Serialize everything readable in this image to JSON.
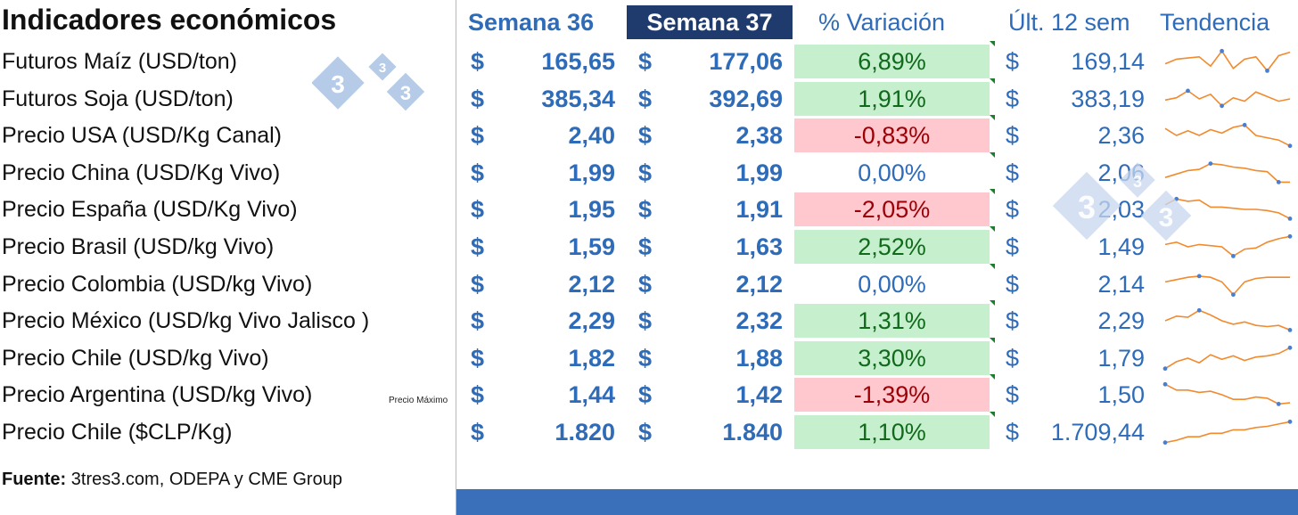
{
  "title": "Indicadores económicos",
  "headers": {
    "week36": "Semana 36",
    "week37": "Semana 37",
    "variation": "% Variación",
    "last12": "Últ. 12 sem",
    "trend": "Tendencia"
  },
  "currency_symbol": "$",
  "rows": [
    {
      "label": "Futuros Maíz (USD/ton)",
      "w36": "165,65",
      "w37": "177,06",
      "var": "6,89%",
      "sign": "pos",
      "last12": "169,14",
      "trend": [
        0.4,
        0.6,
        0.65,
        0.7,
        0.3,
        0.95,
        0.2,
        0.6,
        0.7,
        0.1,
        0.75,
        0.9
      ]
    },
    {
      "label": "Futuros Soja (USD/ton)",
      "w36": "385,34",
      "w37": "392,69",
      "var": "1,91%",
      "sign": "pos",
      "last12": "383,19",
      "trend": [
        0.45,
        0.55,
        0.85,
        0.5,
        0.7,
        0.2,
        0.55,
        0.4,
        0.8,
        0.6,
        0.4,
        0.5
      ]
    },
    {
      "label": "Precio USA (USD/Kg Canal)",
      "w36": "2,40",
      "w37": "2,38",
      "var": "-0,83%",
      "sign": "neg",
      "last12": "2,36",
      "trend": [
        0.8,
        0.5,
        0.7,
        0.5,
        0.75,
        0.6,
        0.85,
        0.95,
        0.5,
        0.4,
        0.3,
        0.05
      ]
    },
    {
      "label": "Precio China (USD/Kg Vivo)",
      "w36": "1,99",
      "w37": "1,99",
      "var": "0,00%",
      "sign": "zero",
      "last12": "2,06",
      "trend": [
        0.3,
        0.45,
        0.6,
        0.65,
        0.9,
        0.85,
        0.75,
        0.7,
        0.6,
        0.55,
        0.1,
        0.1
      ]
    },
    {
      "label": "Precio España (USD/Kg Vivo)",
      "w36": "1,95",
      "w37": "1,91",
      "var": "-2,05%",
      "sign": "neg",
      "last12": "2,03",
      "trend": [
        0.7,
        0.95,
        0.85,
        0.9,
        0.6,
        0.6,
        0.55,
        0.5,
        0.5,
        0.45,
        0.35,
        0.1
      ]
    },
    {
      "label": "Precio  Brasil (USD/kg Vivo)",
      "w36": "1,59",
      "w37": "1,63",
      "var": "2,52%",
      "sign": "pos",
      "last12": "1,49",
      "trend": [
        0.6,
        0.7,
        0.5,
        0.6,
        0.55,
        0.5,
        0.1,
        0.4,
        0.45,
        0.7,
        0.85,
        0.95
      ]
    },
    {
      "label": "Precio Colombia (USD/kg Vivo)",
      "w36": "2,12",
      "w37": "2,12",
      "var": "0,00%",
      "sign": "zero",
      "last12": "2,14",
      "trend": [
        0.6,
        0.7,
        0.8,
        0.85,
        0.8,
        0.6,
        0.05,
        0.6,
        0.75,
        0.8,
        0.8,
        0.8
      ]
    },
    {
      "label": "Precio México (USD/kg Vivo Jalisco )",
      "w36": "2,29",
      "w37": "2,32",
      "var": "1,31%",
      "sign": "pos",
      "last12": "2,29",
      "trend": [
        0.5,
        0.7,
        0.65,
        0.95,
        0.75,
        0.5,
        0.35,
        0.45,
        0.3,
        0.25,
        0.3,
        0.1
      ]
    },
    {
      "label": "Precio Chile (USD/kg Vivo)",
      "w36": "1,82",
      "w37": "1,88",
      "var": "3,30%",
      "sign": "pos",
      "last12": "1,79",
      "trend": [
        0.05,
        0.35,
        0.5,
        0.3,
        0.65,
        0.45,
        0.6,
        0.4,
        0.55,
        0.6,
        0.7,
        0.95
      ]
    },
    {
      "label": "Precio Argentina (USD/kg Vivo)",
      "w36": "1,44",
      "w37": "1,42",
      "var": "-1,39%",
      "sign": "neg",
      "last12": "1,50",
      "trend": [
        0.95,
        0.7,
        0.7,
        0.6,
        0.65,
        0.5,
        0.3,
        0.3,
        0.4,
        0.35,
        0.1,
        0.15
      ]
    },
    {
      "label": "Precio Chile ($CLP/Kg)",
      "w36": "1.820",
      "w37": "1.840",
      "var": "1,10%",
      "sign": "pos",
      "last12": "1.709,44",
      "trend": [
        0.05,
        0.15,
        0.3,
        0.3,
        0.45,
        0.45,
        0.6,
        0.6,
        0.7,
        0.75,
        0.85,
        0.95
      ]
    }
  ],
  "note": "Precio Máximo",
  "source_label": "Fuente:",
  "source_text": " 3tres3.com, ODEPA y CME Group",
  "logo_digit": "3",
  "colors": {
    "accent": "#2e6bb8",
    "header_dark": "#1f3b6e",
    "positive_bg": "#c6efce",
    "negative_bg": "#ffc7ce",
    "spark": "#f28a2e",
    "spark_marker": "#4a7fd0"
  }
}
